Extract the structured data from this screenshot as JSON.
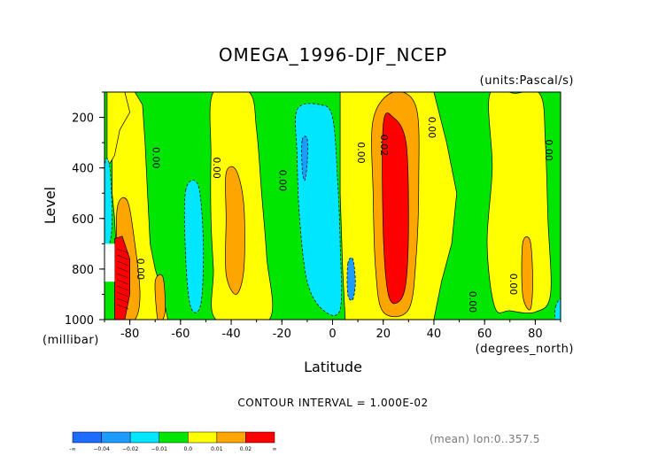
{
  "chart_data": {
    "type": "contour",
    "title": "OMEGA_1996-DJF_NCEP",
    "units_label": "(units:Pascal/s)",
    "xlabel": "Latitude",
    "x_units_label": "(degrees_north)",
    "ylabel": "Level",
    "y_units_label": "(millibar)",
    "xlim": [
      -90,
      90
    ],
    "ylim": [
      1000,
      100
    ],
    "x_ticks": [
      -80,
      -60,
      -40,
      -20,
      0,
      20,
      40,
      60,
      80
    ],
    "x_tick_labels": [
      "-80",
      "-60",
      "-40",
      "-20",
      "0",
      "20",
      "40",
      "60",
      "80"
    ],
    "y_ticks": [
      200,
      400,
      600,
      800,
      1000
    ],
    "y_tick_labels": [
      "200",
      "400",
      "600",
      "800",
      "1000"
    ],
    "contour_interval_text": "CONTOUR INTERVAL = 1.000E-02",
    "footer_note": "(mean) lon:0..357.5",
    "contour_labels": [
      {
        "x": -71,
        "y": 360,
        "text": "0.00"
      },
      {
        "x": -47,
        "y": 400,
        "text": "0.00"
      },
      {
        "x": -21,
        "y": 450,
        "text": "0.00"
      },
      {
        "x": 10,
        "y": 340,
        "text": "0.00"
      },
      {
        "x": 19,
        "y": 310,
        "text": "0.02"
      },
      {
        "x": 38,
        "y": 240,
        "text": "0.00"
      },
      {
        "x": -77,
        "y": 800,
        "text": "0.00"
      },
      {
        "x": 54,
        "y": 930,
        "text": "0.00"
      },
      {
        "x": 70,
        "y": 860,
        "text": "0.00"
      },
      {
        "x": 84,
        "y": 330,
        "text": "0.00"
      }
    ],
    "regions": [
      {
        "level": "0.00 to 0.01",
        "center_lat": -66,
        "lat_range": [
          -78,
          -58
        ],
        "p_range": [
          100,
          1000
        ]
      },
      {
        "level": "-0.01 to 0.0",
        "center_lat": -54,
        "lat_range": [
          -60,
          -50
        ],
        "p_range": [
          100,
          1000
        ]
      },
      {
        "level": "-0.02 to -0.01",
        "center_lat": -55,
        "lat_range": [
          -58,
          -51
        ],
        "p_range": [
          520,
          940
        ]
      },
      {
        "level": "0.00 to 0.01",
        "center_lat": -37,
        "lat_range": [
          -49,
          -25
        ],
        "p_range": [
          100,
          1000
        ]
      },
      {
        "level": "0.01 to 0.02",
        "center_lat": -39,
        "lat_range": [
          -42,
          -35
        ],
        "p_range": [
          410,
          900
        ]
      },
      {
        "level": "-0.02 to -0.01",
        "center_lat": -5,
        "lat_range": [
          -14,
          3
        ],
        "p_range": [
          100,
          1000
        ]
      },
      {
        "level": "-0.03 to -0.02",
        "center_lat": -11,
        "lat_range": [
          -12,
          -10
        ],
        "p_range": [
          290,
          450
        ]
      },
      {
        "level": "-0.03 to -0.02",
        "center_lat": 7,
        "lat_range": [
          6,
          9
        ],
        "p_range": [
          760,
          920
        ]
      },
      {
        "level": "0.00 to 0.01",
        "center_lat": 22,
        "lat_range": [
          3,
          40
        ],
        "p_range": [
          100,
          1000
        ]
      },
      {
        "level": "0.01 to 0.02",
        "center_lat": 24,
        "lat_range": [
          16,
          34
        ],
        "p_range": [
          100,
          970
        ]
      },
      {
        "level": "0.02 to 0.03",
        "center_lat": 25,
        "lat_range": [
          20,
          30
        ],
        "p_range": [
          200,
          930
        ]
      },
      {
        "level": "0.00 to 0.01",
        "center_lat": 73,
        "lat_range": [
          61,
          85
        ],
        "p_range": [
          100,
          1000
        ]
      },
      {
        "level": "0.01 to 0.02",
        "center_lat": 77,
        "lat_range": [
          75,
          79
        ],
        "p_range": [
          700,
          960
        ]
      },
      {
        "level": "0.02 to 0.03",
        "center_lat": -83,
        "lat_range": [
          -86,
          -80
        ],
        "p_range": [
          680,
          1000
        ]
      }
    ],
    "colorbar": {
      "labels": [
        "-∞",
        "−0.04",
        "−0.02",
        "−0.01",
        "0.0",
        "0.01",
        "0.02",
        "∞"
      ],
      "colors": [
        "#1e6bff",
        "#1e9bff",
        "#00e6ff",
        "#00e600",
        "#ffff00",
        "#ffa500",
        "#ff0000"
      ]
    },
    "legend": "bottom",
    "grid": false
  },
  "colors": {
    "background": "#ffffff",
    "neg3": "#1e6bff",
    "neg2": "#1e9bff",
    "neg1": "#00e6ff",
    "zero": "#00e600",
    "pos1": "#ffff00",
    "pos2": "#ffa500",
    "pos3": "#ff0000"
  }
}
